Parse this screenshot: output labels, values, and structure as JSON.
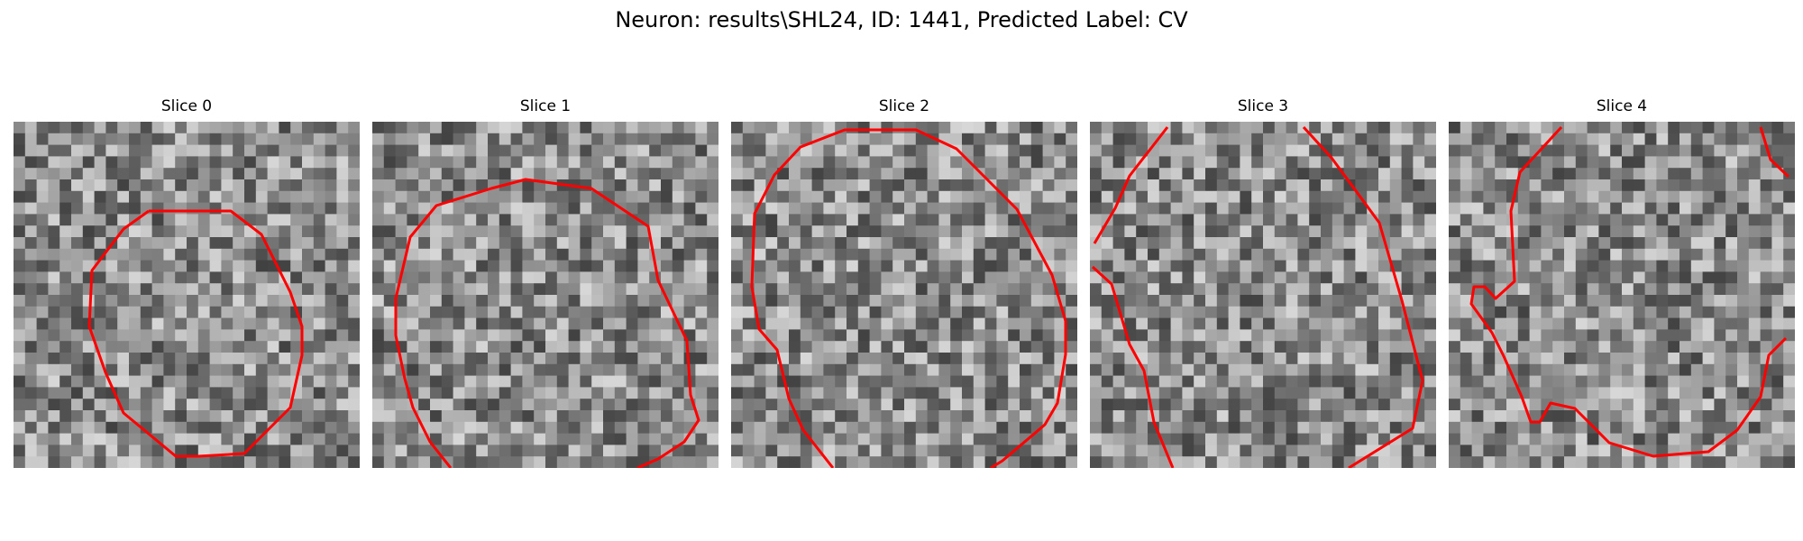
{
  "figure": {
    "title": "Neuron: results\\SHL24, ID: 1441, Predicted Label: CV"
  },
  "panels": [
    {
      "title": "Slice 0"
    },
    {
      "title": "Slice 1"
    },
    {
      "title": "Slice 2"
    },
    {
      "title": "Slice 3"
    },
    {
      "title": "Slice 4"
    }
  ],
  "colors": {
    "contour": "#ff0000",
    "pixel_dark": "#000000",
    "pixel_light": "#f0f0f0"
  }
}
